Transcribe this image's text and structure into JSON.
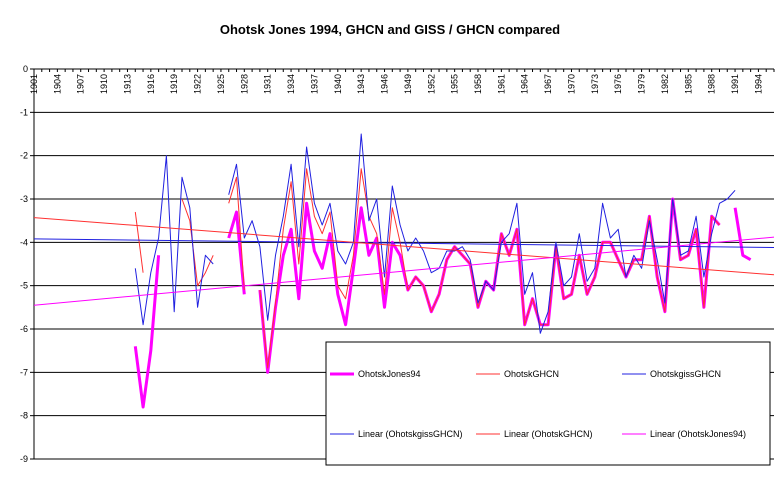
{
  "chart_data": {
    "type": "line",
    "title": "Ohotsk Jones 1994, GHCN and GISS / GHCN compared",
    "xlabel": "",
    "ylabel": "",
    "xlim": [
      1901,
      1996
    ],
    "ylim": [
      -9,
      0
    ],
    "y_ticks": [
      0,
      -1,
      -2,
      -3,
      -4,
      -5,
      -6,
      -7,
      -8,
      -9
    ],
    "x_tick_labels": [
      "1901",
      "1904",
      "1907",
      "1910",
      "1913",
      "1916",
      "1919",
      "1922",
      "1925",
      "1928",
      "1931",
      "1934",
      "1937",
      "1940",
      "1943",
      "1946",
      "1949",
      "1952",
      "1955",
      "1958",
      "1961",
      "1964",
      "1967",
      "1970",
      "1973",
      "1976",
      "1979",
      "1982",
      "1985",
      "1988",
      "1991",
      "1994"
    ],
    "grid": true,
    "legend_position": "bottom-right",
    "series": [
      {
        "name": "OhotskJones94",
        "color": "#ff00ff",
        "points": [
          [
            1914,
            -6.4
          ],
          [
            1915,
            -7.8
          ],
          [
            1916,
            -6.5
          ],
          [
            1917,
            -4.3
          ],
          null,
          [
            1926,
            -3.9
          ],
          [
            1927,
            -3.3
          ],
          [
            1928,
            -5.2
          ],
          null,
          [
            1930,
            -5.1
          ],
          [
            1931,
            -7.0
          ],
          [
            1932,
            -5.5
          ],
          [
            1933,
            -4.3
          ],
          [
            1934,
            -3.7
          ],
          [
            1935,
            -5.3
          ],
          [
            1936,
            -3.1
          ],
          [
            1937,
            -4.2
          ],
          [
            1938,
            -4.6
          ],
          [
            1939,
            -3.8
          ],
          [
            1940,
            -5.2
          ],
          [
            1941,
            -5.9
          ],
          [
            1942,
            -4.6
          ],
          [
            1943,
            -3.2
          ],
          [
            1944,
            -4.3
          ],
          [
            1945,
            -3.9
          ],
          [
            1946,
            -5.5
          ],
          [
            1947,
            -4.0
          ],
          [
            1948,
            -4.3
          ],
          [
            1949,
            -5.1
          ],
          [
            1950,
            -4.8
          ],
          [
            1951,
            -5.0
          ],
          [
            1952,
            -5.6
          ],
          [
            1953,
            -5.2
          ],
          [
            1954,
            -4.4
          ],
          [
            1955,
            -4.1
          ],
          [
            1956,
            -4.3
          ],
          [
            1957,
            -4.5
          ],
          [
            1958,
            -5.5
          ],
          [
            1959,
            -4.9
          ],
          [
            1960,
            -5.1
          ],
          [
            1961,
            -3.8
          ],
          [
            1962,
            -4.3
          ],
          [
            1963,
            -3.7
          ],
          [
            1964,
            -5.9
          ],
          [
            1965,
            -5.3
          ],
          [
            1966,
            -5.9
          ],
          [
            1967,
            -5.9
          ],
          [
            1968,
            -4.1
          ],
          [
            1969,
            -5.3
          ],
          [
            1970,
            -5.2
          ],
          [
            1971,
            -4.3
          ],
          [
            1972,
            -5.2
          ],
          [
            1973,
            -4.8
          ],
          [
            1974,
            -4.0
          ],
          [
            1975,
            -4.0
          ],
          [
            1976,
            -4.4
          ],
          [
            1977,
            -4.8
          ],
          [
            1978,
            -4.4
          ],
          [
            1979,
            -4.4
          ],
          [
            1980,
            -3.4
          ],
          [
            1981,
            -4.8
          ],
          [
            1982,
            -5.6
          ],
          [
            1983,
            -3.0
          ],
          [
            1984,
            -4.4
          ],
          [
            1985,
            -4.3
          ],
          [
            1986,
            -3.7
          ],
          [
            1987,
            -5.5
          ],
          [
            1988,
            -3.4
          ],
          [
            1989,
            -3.6
          ],
          null,
          [
            1991,
            -3.2
          ],
          [
            1992,
            -4.3
          ],
          [
            1993,
            -4.4
          ]
        ]
      },
      {
        "name": "OhotskGHCN",
        "color": "#ff3030",
        "points": [
          [
            1914,
            -3.3
          ],
          [
            1915,
            -4.7
          ],
          null,
          [
            1920,
            -3.0
          ],
          [
            1921,
            -3.5
          ],
          [
            1922,
            -5.0
          ],
          [
            1923,
            -4.7
          ],
          [
            1924,
            -4.3
          ],
          null,
          [
            1926,
            -3.1
          ],
          [
            1927,
            -2.5
          ],
          [
            1928,
            -5.1
          ],
          null,
          [
            1930,
            -5.1
          ],
          [
            1931,
            -6.9
          ],
          [
            1932,
            -5.4
          ],
          [
            1933,
            -3.7
          ],
          [
            1934,
            -2.6
          ],
          [
            1935,
            -4.5
          ],
          [
            1936,
            -2.3
          ],
          [
            1937,
            -3.4
          ],
          [
            1938,
            -3.8
          ],
          [
            1939,
            -3.3
          ],
          [
            1940,
            -5.0
          ],
          [
            1941,
            -5.3
          ],
          [
            1942,
            -4.3
          ],
          [
            1943,
            -2.3
          ],
          [
            1944,
            -3.4
          ],
          [
            1945,
            -3.8
          ],
          [
            1946,
            -5.2
          ],
          [
            1947,
            -3.2
          ],
          [
            1948,
            -4.0
          ],
          [
            1949,
            -5.1
          ],
          [
            1950,
            -4.8
          ],
          [
            1951,
            -5.0
          ],
          [
            1952,
            -5.6
          ],
          [
            1953,
            -5.2
          ],
          [
            1954,
            -4.4
          ],
          [
            1955,
            -4.1
          ],
          [
            1956,
            -4.3
          ],
          [
            1957,
            -4.5
          ],
          [
            1958,
            -5.5
          ],
          [
            1959,
            -4.9
          ],
          [
            1960,
            -5.1
          ],
          [
            1961,
            -3.8
          ],
          [
            1962,
            -4.3
          ],
          [
            1963,
            -3.7
          ],
          [
            1964,
            -5.9
          ],
          [
            1965,
            -5.3
          ],
          [
            1966,
            -5.9
          ],
          [
            1967,
            -5.9
          ],
          [
            1968,
            -4.1
          ],
          [
            1969,
            -5.3
          ],
          [
            1970,
            -5.2
          ],
          [
            1971,
            -4.3
          ],
          [
            1972,
            -5.2
          ],
          [
            1973,
            -4.8
          ],
          [
            1974,
            -4.0
          ],
          [
            1975,
            -4.0
          ],
          [
            1976,
            -4.4
          ],
          [
            1977,
            -4.8
          ],
          [
            1978,
            -4.4
          ],
          [
            1979,
            -4.4
          ],
          [
            1980,
            -3.4
          ],
          [
            1981,
            -4.8
          ],
          [
            1982,
            -5.6
          ],
          [
            1983,
            -3.0
          ],
          [
            1984,
            -4.4
          ],
          [
            1985,
            -4.3
          ],
          [
            1986,
            -3.7
          ],
          [
            1987,
            -5.5
          ],
          [
            1988,
            -3.4
          ],
          [
            1989,
            -3.6
          ]
        ]
      },
      {
        "name": "OhotskgissGHCN",
        "color": "#2020e0",
        "points": [
          [
            1914,
            -4.6
          ],
          [
            1915,
            -5.9
          ],
          [
            1916,
            -4.7
          ],
          [
            1917,
            -3.9
          ],
          [
            1918,
            -2.0
          ],
          [
            1919,
            -5.6
          ],
          [
            1920,
            -2.5
          ],
          [
            1921,
            -3.2
          ],
          [
            1922,
            -5.5
          ],
          [
            1923,
            -4.3
          ],
          [
            1924,
            -4.5
          ],
          null,
          [
            1926,
            -2.9
          ],
          [
            1927,
            -2.2
          ],
          [
            1928,
            -3.9
          ],
          [
            1929,
            -3.5
          ],
          [
            1930,
            -4.1
          ],
          [
            1931,
            -5.8
          ],
          [
            1932,
            -4.3
          ],
          [
            1933,
            -3.4
          ],
          [
            1934,
            -2.2
          ],
          [
            1935,
            -4.1
          ],
          [
            1936,
            -1.8
          ],
          [
            1937,
            -3.1
          ],
          [
            1938,
            -3.6
          ],
          [
            1939,
            -3.1
          ],
          [
            1940,
            -4.2
          ],
          [
            1941,
            -4.5
          ],
          [
            1942,
            -4.0
          ],
          [
            1943,
            -1.5
          ],
          [
            1944,
            -3.5
          ],
          [
            1945,
            -3.0
          ],
          [
            1946,
            -4.8
          ],
          [
            1947,
            -2.7
          ],
          [
            1948,
            -3.6
          ],
          [
            1949,
            -4.2
          ],
          [
            1950,
            -3.9
          ],
          [
            1951,
            -4.2
          ],
          [
            1952,
            -4.7
          ],
          [
            1953,
            -4.6
          ],
          [
            1954,
            -4.2
          ],
          [
            1955,
            -4.2
          ],
          [
            1956,
            -4.1
          ],
          [
            1957,
            -4.4
          ],
          [
            1958,
            -5.4
          ],
          [
            1959,
            -4.9
          ],
          [
            1960,
            -5.1
          ],
          [
            1961,
            -4.0
          ],
          [
            1962,
            -3.8
          ],
          [
            1963,
            -3.1
          ],
          [
            1964,
            -5.2
          ],
          [
            1965,
            -4.7
          ],
          [
            1966,
            -6.1
          ],
          [
            1967,
            -5.6
          ],
          [
            1968,
            -4.0
          ],
          [
            1969,
            -5.0
          ],
          [
            1970,
            -4.8
          ],
          [
            1971,
            -3.8
          ],
          [
            1972,
            -4.9
          ],
          [
            1973,
            -4.6
          ],
          [
            1974,
            -3.1
          ],
          [
            1975,
            -3.9
          ],
          [
            1976,
            -3.7
          ],
          [
            1977,
            -4.8
          ],
          [
            1978,
            -4.3
          ],
          [
            1979,
            -4.6
          ],
          [
            1980,
            -3.5
          ],
          [
            1981,
            -4.4
          ],
          [
            1982,
            -5.4
          ],
          [
            1983,
            -3.0
          ],
          [
            1984,
            -4.3
          ],
          [
            1985,
            -4.2
          ],
          [
            1986,
            -3.4
          ],
          [
            1987,
            -4.8
          ],
          [
            1988,
            -3.8
          ],
          [
            1989,
            -3.1
          ],
          [
            1990,
            -3.0
          ],
          [
            1991,
            -2.8
          ]
        ]
      },
      {
        "name": "Linear (OhotskgissGHCN)",
        "color": "#2020e0",
        "points": [
          [
            1901,
            -3.92
          ],
          [
            1996,
            -4.12
          ]
        ]
      },
      {
        "name": "Linear (OhotskGHCN)",
        "color": "#ff3030",
        "points": [
          [
            1901,
            -3.43
          ],
          [
            1996,
            -4.75
          ]
        ]
      },
      {
        "name": "Linear (OhotskJones94)",
        "color": "#ff00ff",
        "points": [
          [
            1901,
            -5.45
          ],
          [
            1996,
            -3.88
          ]
        ]
      }
    ]
  }
}
